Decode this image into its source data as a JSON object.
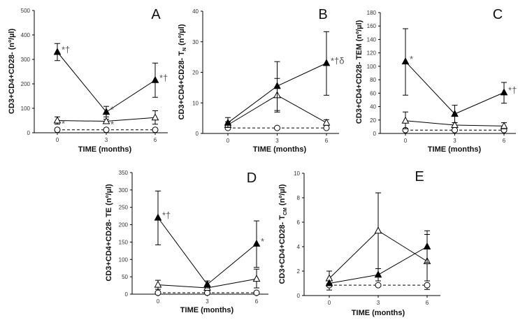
{
  "chart_data": [
    {
      "panel_label": "A",
      "type": "line",
      "xlabel": "TIME (months)",
      "ylabel": "CD3+CD4+CD28- (nº/µl)",
      "ylabel_sub": "",
      "ylabel_unit": "",
      "x": [
        0,
        3,
        6
      ],
      "x_ticks": [
        "0",
        "3",
        "6"
      ],
      "ylim": [
        0,
        500
      ],
      "y_ticks": [
        0,
        100,
        200,
        300,
        400,
        500
      ],
      "series": [
        {
          "marker": "filled-triangle",
          "style": "solid",
          "values": [
            330,
            85,
            215
          ],
          "err_high": [
            365,
            108,
            285
          ],
          "err_low": [
            295,
            65,
            145
          ],
          "annotations": [
            "*†",
            "*",
            "*†"
          ]
        },
        {
          "marker": "open-triangle",
          "style": "solid",
          "values": [
            50,
            47,
            62
          ],
          "err_high": [
            65,
            55,
            90
          ],
          "err_low": [
            35,
            40,
            35
          ],
          "annotations": [
            "*",
            "*",
            ""
          ]
        },
        {
          "marker": "open-circle",
          "style": "dashed",
          "values": [
            12,
            12,
            12
          ],
          "err_high": [
            null,
            null,
            null
          ],
          "err_low": [
            null,
            null,
            null
          ],
          "annotations": [
            "",
            "",
            ""
          ]
        }
      ]
    },
    {
      "panel_label": "B",
      "type": "line",
      "xlabel": "TIME (months)",
      "ylabel": "CD3+CD4+CD28- T",
      "ylabel_sub": "N",
      "ylabel_unit": " (nº/µl)",
      "x": [
        0,
        3,
        6
      ],
      "x_ticks": [
        "0",
        "3",
        "6"
      ],
      "ylim": [
        0,
        40
      ],
      "y_ticks": [
        0,
        10,
        20,
        30,
        40
      ],
      "series": [
        {
          "marker": "filled-triangle",
          "style": "solid",
          "values": [
            3.5,
            15.5,
            23
          ],
          "err_high": [
            5.2,
            23.5,
            33.3
          ],
          "err_low": [
            2,
            7.5,
            12.5
          ],
          "annotations": [
            "",
            "",
            "*†δ"
          ]
        },
        {
          "marker": "open-triangle",
          "style": "solid",
          "values": [
            2.8,
            12.5,
            3.5
          ],
          "err_high": [
            3.8,
            18,
            4.5
          ],
          "err_low": [
            2,
            7,
            2.8
          ],
          "annotations": [
            "",
            "",
            ""
          ]
        },
        {
          "marker": "open-circle",
          "style": "dashed",
          "values": [
            1.8,
            1.8,
            1.8
          ],
          "err_high": [
            null,
            null,
            null
          ],
          "err_low": [
            null,
            null,
            null
          ],
          "annotations": [
            "",
            "",
            ""
          ]
        }
      ]
    },
    {
      "panel_label": "C",
      "type": "line",
      "xlabel": "TIME (months)",
      "ylabel": "CD3+CD4+CD28- TEM (nº/µl)",
      "ylabel_sub": "",
      "ylabel_unit": "",
      "x": [
        0,
        3,
        6
      ],
      "x_ticks": [
        "0",
        "3",
        "6"
      ],
      "ylim": [
        0,
        180
      ],
      "y_ticks": [
        0,
        20,
        40,
        60,
        80,
        100,
        120,
        140,
        160,
        180
      ],
      "series": [
        {
          "marker": "filled-triangle",
          "style": "solid",
          "values": [
            107,
            29,
            61
          ],
          "err_high": [
            156,
            42,
            76
          ],
          "err_low": [
            57,
            16,
            45
          ],
          "annotations": [
            "*",
            "",
            "*†"
          ]
        },
        {
          "marker": "open-triangle",
          "style": "solid",
          "values": [
            19,
            12.5,
            11
          ],
          "err_high": [
            32,
            16,
            16
          ],
          "err_low": [
            7,
            9,
            7
          ],
          "annotations": [
            "",
            "",
            ""
          ]
        },
        {
          "marker": "open-circle",
          "style": "dashed",
          "values": [
            5,
            5,
            5
          ],
          "err_high": [
            null,
            null,
            null
          ],
          "err_low": [
            null,
            null,
            null
          ],
          "annotations": [
            "",
            "",
            ""
          ]
        }
      ]
    },
    {
      "panel_label": "D",
      "type": "line",
      "xlabel": "TIME (months)",
      "ylabel": "CD3+CD4+CD28- TE (nº/µl)",
      "ylabel_sub": "",
      "ylabel_unit": "",
      "x": [
        0,
        3,
        6
      ],
      "x_ticks": [
        "0",
        "3",
        "6"
      ],
      "ylim": [
        0,
        350
      ],
      "y_ticks": [
        0,
        50,
        100,
        150,
        200,
        250,
        300,
        350
      ],
      "series": [
        {
          "marker": "filled-triangle",
          "style": "solid",
          "values": [
            220,
            28,
            145
          ],
          "err_high": [
            297,
            38,
            211
          ],
          "err_low": [
            142,
            18,
            77
          ],
          "annotations": [
            "*†",
            "",
            "*"
          ]
        },
        {
          "marker": "open-triangle",
          "style": "solid",
          "values": [
            27,
            18,
            44
          ],
          "err_high": [
            40,
            25,
            72
          ],
          "err_low": [
            14,
            11,
            18
          ],
          "annotations": [
            "",
            "",
            ""
          ]
        },
        {
          "marker": "open-circle",
          "style": "dashed",
          "values": [
            4,
            4,
            4
          ],
          "err_high": [
            null,
            null,
            null
          ],
          "err_low": [
            null,
            null,
            null
          ],
          "annotations": [
            "",
            "",
            ""
          ]
        }
      ]
    },
    {
      "panel_label": "E",
      "type": "line",
      "xlabel": "TIME (months)",
      "ylabel": "CD3+CD4+CD28- T",
      "ylabel_sub": "CM",
      "ylabel_unit": " (nº/µl)",
      "x": [
        0,
        3,
        6
      ],
      "x_ticks": [
        "0",
        "3",
        "6"
      ],
      "ylim": [
        0,
        10
      ],
      "y_ticks": [
        0,
        2,
        4,
        6,
        8,
        10
      ],
      "series": [
        {
          "marker": "filled-triangle",
          "style": "solid",
          "values": [
            1.0,
            1.7,
            4.0
          ],
          "err_high": [
            null,
            2.2,
            5.3
          ],
          "err_low": [
            null,
            1.2,
            2.7
          ],
          "annotations": [
            "",
            "",
            ""
          ]
        },
        {
          "marker": "open-triangle",
          "style": "solid",
          "values": [
            1.4,
            5.3,
            2.8
          ],
          "err_high": [
            2.0,
            8.4,
            5.0
          ],
          "err_low": [
            0.9,
            2.2,
            1.2
          ],
          "annotations": [
            "",
            "",
            ""
          ]
        },
        {
          "marker": "open-circle",
          "style": "dashed",
          "values": [
            0.85,
            0.85,
            0.85
          ],
          "err_high": [
            null,
            null,
            null
          ],
          "err_low": [
            0.45,
            null,
            0.5
          ],
          "annotations": [
            "",
            "",
            ""
          ]
        }
      ]
    }
  ]
}
